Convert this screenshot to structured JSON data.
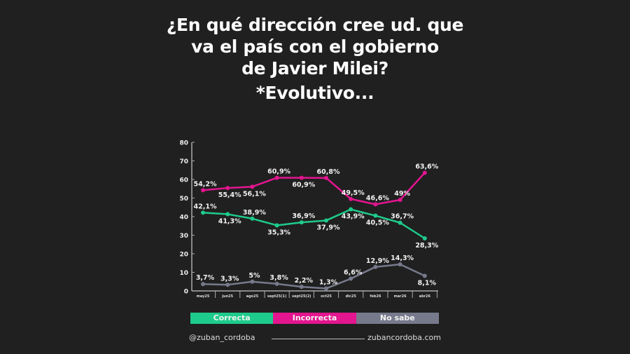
{
  "chart_data": {
    "type": "line",
    "title": "¿En qué dirección cree ud. que va el país con el gobierno de Javier Milei?",
    "title_lines": [
      "¿En qué dirección cree ud. que",
      "va el país con el gobierno",
      "de Javier Milei?"
    ],
    "subtitle": "*Evolutivo...",
    "categories": [
      "may25",
      "jun25",
      "ago25",
      "sept25(1)",
      "sept25(2)",
      "oct25",
      "dic25",
      "feb26",
      "mar26",
      "abr26"
    ],
    "ylim": [
      0,
      80
    ],
    "yticks": [
      0,
      10,
      20,
      30,
      40,
      50,
      60,
      70,
      80
    ],
    "grid": false,
    "legend_position": "bottom",
    "series": [
      {
        "name": "Correcta",
        "color": "#1ecb8c",
        "values": [
          42.1,
          41.3,
          38.9,
          35.3,
          36.9,
          37.9,
          43.9,
          40.5,
          36.7,
          28.3
        ],
        "labels": [
          "42,1%",
          "41,3%",
          "38,9%",
          "35,3%",
          "36,9%",
          "37,9%",
          "43,9%",
          "40,5%",
          "36,7%",
          "28,3%"
        ]
      },
      {
        "name": "Incorrecta",
        "color": "#e3158f",
        "values": [
          54.2,
          55.4,
          56.1,
          60.9,
          60.9,
          60.8,
          49.5,
          46.6,
          49,
          63.6
        ],
        "labels": [
          "54,2%",
          "55,4%",
          "56,1%",
          "60,9%",
          "60,9%",
          "60,8%",
          "49,5%",
          "46,6%",
          "49%",
          "63,6%"
        ]
      },
      {
        "name": "No sabe",
        "color": "#777a8c",
        "values": [
          3.7,
          3.3,
          5,
          3.8,
          2.2,
          1.3,
          6.6,
          12.9,
          14.3,
          8.1
        ],
        "labels": [
          "3,7%",
          "3,3%",
          "5%",
          "3,8%",
          "2,2%",
          "1,3%",
          "6,6%",
          "12,9%",
          "14,3%",
          "8,1%"
        ]
      }
    ]
  },
  "footer": {
    "handle": "@zuban_cordoba",
    "website": "zubancordoba.com"
  }
}
